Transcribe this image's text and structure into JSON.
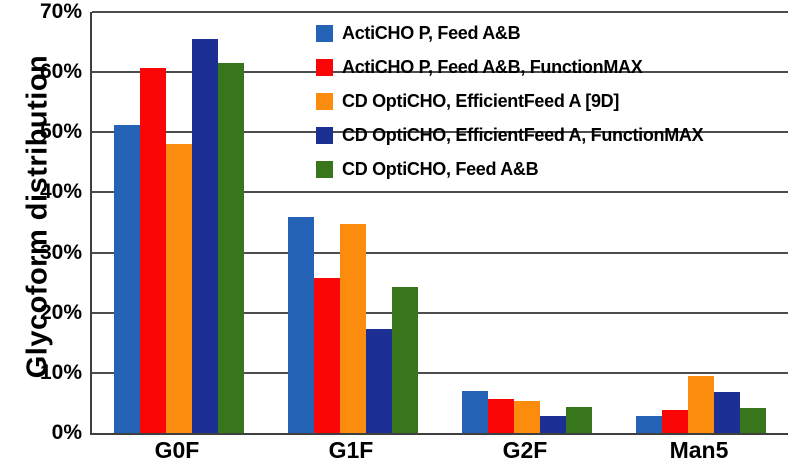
{
  "chart_data": {
    "type": "bar",
    "title": "",
    "ylabel": "Glycoform distribution",
    "xlabel": "",
    "categories": [
      "G0F",
      "G1F",
      "G2F",
      "Man5"
    ],
    "series": [
      {
        "name": "ActiCHO P, Feed A&B",
        "color": "#2463B6",
        "values": [
          51.2,
          35.9,
          7.0,
          2.9
        ]
      },
      {
        "name": "ActiCHO P, Feed A&B, FunctionMAX",
        "color": "#FA0606",
        "values": [
          60.7,
          25.8,
          5.6,
          3.8
        ]
      },
      {
        "name": "CD OptiCHO, EfficientFeed A [9D]",
        "color": "#FB8C0E",
        "values": [
          48.0,
          34.7,
          5.3,
          9.5
        ]
      },
      {
        "name": "CD OptiCHO, EfficientFeed A, FunctionMAX",
        "color": "#1C2F93",
        "values": [
          65.5,
          17.3,
          2.9,
          6.9
        ]
      },
      {
        "name": "CD OptiCHO, Feed A&B",
        "color": "#37761B",
        "values": [
          61.5,
          24.2,
          4.4,
          4.1
        ]
      }
    ],
    "ylim": [
      0,
      70
    ],
    "ytick_step": 10,
    "ytick_format": "percent",
    "grid": true,
    "legend_position": "top-right-inside"
  }
}
